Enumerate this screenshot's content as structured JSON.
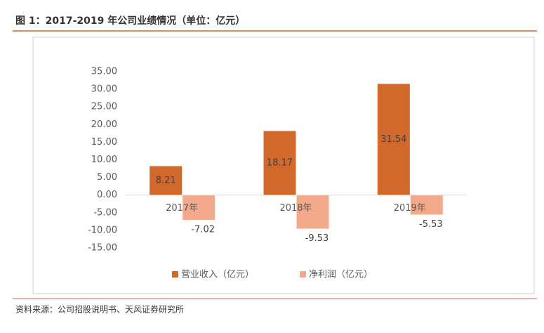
{
  "title": "图 1：2017-2019 年公司业绩情况（单位：亿元）",
  "source": "资料来源：公司招股说明书、天风证券研究所",
  "chart_data": {
    "type": "bar",
    "categories": [
      "2017年",
      "2018年",
      "2019年"
    ],
    "series": [
      {
        "name": "营业收入（亿元）",
        "color": "#d2692a",
        "values": [
          8.21,
          18.17,
          31.54
        ]
      },
      {
        "name": "净利润（亿元）",
        "color": "#f3a98a",
        "values": [
          -7.02,
          -9.53,
          -5.53
        ]
      }
    ],
    "ylim": [
      -15,
      35
    ],
    "yticks": [
      {
        "value": 35,
        "label": "35.00"
      },
      {
        "value": 30,
        "label": "30.00"
      },
      {
        "value": 25,
        "label": "25.00"
      },
      {
        "value": 20,
        "label": "20.00"
      },
      {
        "value": 15,
        "label": "15.00"
      },
      {
        "value": 10,
        "label": "10.00"
      },
      {
        "value": 5,
        "label": "5.00"
      },
      {
        "value": 0,
        "label": "0.00"
      },
      {
        "value": -5,
        "label": "-5.00"
      },
      {
        "value": -10,
        "label": "-10.00"
      },
      {
        "value": -15,
        "label": "-15.00"
      }
    ],
    "grid": false,
    "legend": "bottom"
  }
}
